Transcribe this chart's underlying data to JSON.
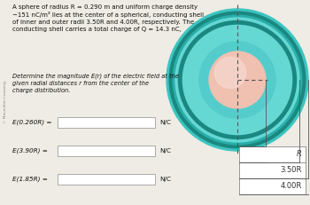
{
  "title_text": "A sphere of radius R = 0.290 m and uniform charge density\n−151 nC/m³ lies at the center of a spherical, conducting shell\nof inner and outer radii 3.50R and 4.00R, respectively. The\nconducting shell carries a total charge of Q = 14.3 nC,",
  "determine_text": "Determine the magnitude E(r) of the electric field at the\ngiven radial distances r from the center of the\ncharge distribution.",
  "label1": "E(0.260R) =",
  "label2": "E(3.90R) =",
  "label3": "E(1.85R) =",
  "unit": "N/C",
  "watermark": "© Macmillan Learning",
  "legend_R": "R",
  "legend_350R": "3.50R",
  "legend_400R": "4.00R",
  "bg_color": "#eeece4",
  "text_color": "#111111",
  "box_color": "#ffffff",
  "box_edge_color": "#aaaaaa",
  "teal_outer": "#3cc4c0",
  "teal_mid": "#2aaeaa",
  "teal_dark": "#1a8880",
  "teal_light": "#66d8d4",
  "sphere_pink": "#f0c0b0",
  "sphere_pink_light": "#f8ddd5"
}
